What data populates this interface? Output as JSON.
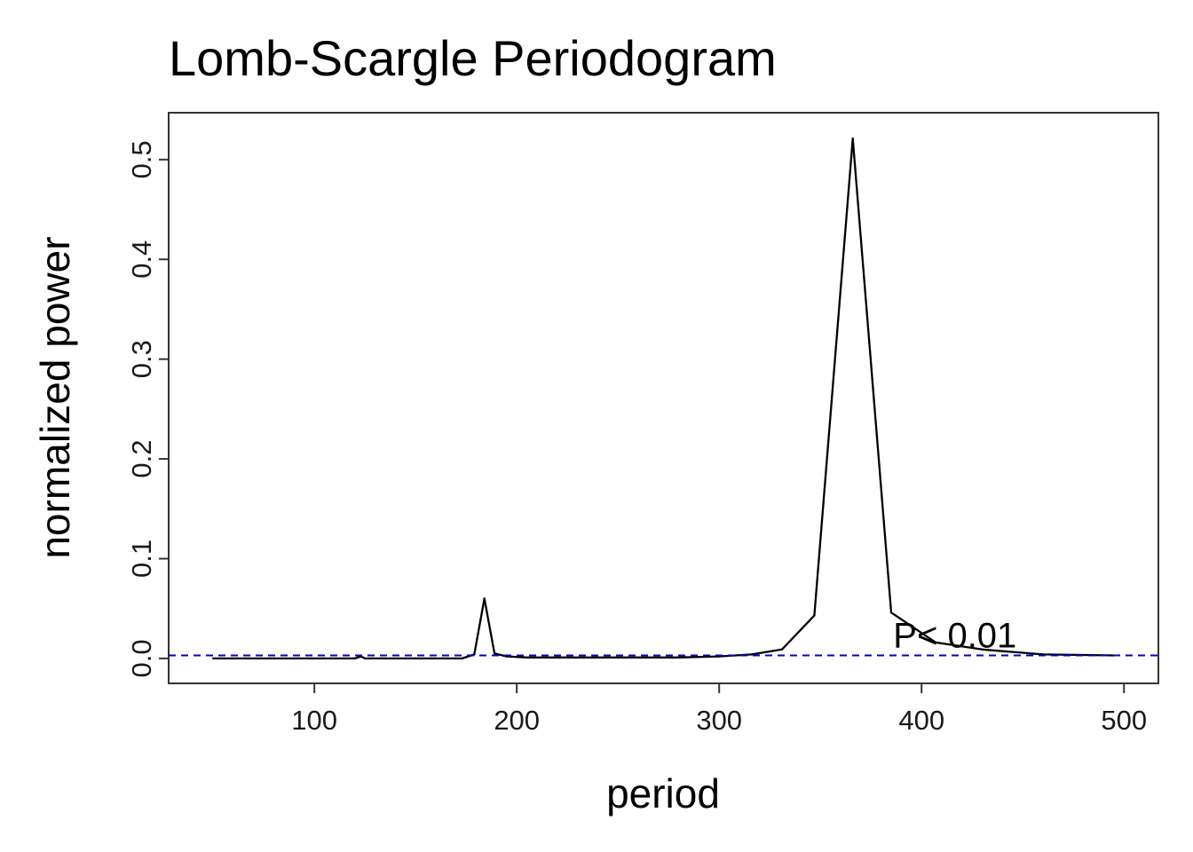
{
  "chart_data": {
    "type": "line",
    "title": "Lomb-Scargle Periodogram",
    "xlabel": "period",
    "ylabel": "normalized power",
    "xlim": [
      28,
      517
    ],
    "ylim": [
      -0.025,
      0.547
    ],
    "xticks": [
      100,
      200,
      300,
      400,
      500
    ],
    "yticks": [
      0.0,
      0.1,
      0.2,
      0.3,
      0.4,
      0.5
    ],
    "ytick_labels": [
      "0.0",
      "0.1",
      "0.2",
      "0.3",
      "0.4",
      "0.5"
    ],
    "grid": false,
    "line_color": "#000000",
    "series": [
      {
        "x": [
          50,
          80,
          100,
          120,
          123,
          125,
          150,
          173,
          179,
          184,
          189,
          195,
          205,
          220,
          240,
          260,
          280,
          300,
          316,
          331,
          347,
          366,
          385,
          407,
          430,
          460,
          495
        ],
        "y": [
          0.0,
          0.0,
          0.0,
          0.0,
          0.002,
          0.0,
          0.0,
          0.0,
          0.004,
          0.06,
          0.005,
          0.002,
          0.001,
          0.001,
          0.001,
          0.001,
          0.001,
          0.002,
          0.004,
          0.009,
          0.043,
          0.521,
          0.046,
          0.016,
          0.009,
          0.004,
          0.003
        ]
      }
    ],
    "threshold": {
      "y": 0.003,
      "style": "dashed",
      "color": "#0000cc"
    },
    "annotation": {
      "text": "P< 0.01",
      "x": 386,
      "y": 0.011
    }
  }
}
